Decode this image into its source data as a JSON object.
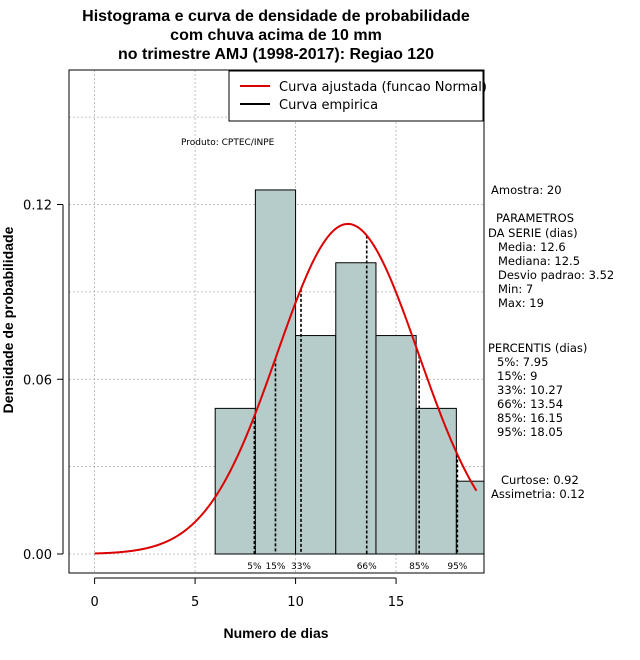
{
  "chart_data": {
    "type": "bar",
    "title": [
      "Histograma e curva de densidade de probabilidade",
      "com chuva acima de 10 mm",
      "no trimestre AMJ (1998-2017): Regiao 120"
    ],
    "xlabel": "Numero de dias",
    "ylabel": "Densidade de probabilidade",
    "xlim": [
      -1,
      19.5
    ],
    "ylim": [
      0,
      0.16
    ],
    "x_ticks": [
      0,
      5,
      10,
      15
    ],
    "y_ticks": [
      0.0,
      0.06,
      0.12
    ],
    "y_tick_labels": [
      "0.00",
      "0.06",
      "0.12"
    ],
    "grid": true,
    "bins": [
      {
        "x0": 6,
        "x1": 8,
        "value": 0.05
      },
      {
        "x0": 8,
        "x1": 10,
        "value": 0.125
      },
      {
        "x0": 10,
        "x1": 12,
        "value": 0.075
      },
      {
        "x0": 12,
        "x1": 14,
        "value": 0.1
      },
      {
        "x0": 14,
        "x1": 16,
        "value": 0.075
      },
      {
        "x0": 16,
        "x1": 18,
        "value": 0.05
      },
      {
        "x0": 18,
        "x1": 20,
        "value": 0.025
      }
    ],
    "normal_curve": {
      "mean": 12.6,
      "sd": 3.52,
      "x_from": 0,
      "x_to": 19
    },
    "percentile_lines": [
      {
        "label": "5%",
        "x": 7.95
      },
      {
        "label": "15%",
        "x": 9
      },
      {
        "label": "33%",
        "x": 10.27
      },
      {
        "label": "66%",
        "x": 13.54
      },
      {
        "label": "85%",
        "x": 16.15
      },
      {
        "label": "95%",
        "x": 18.05
      }
    ],
    "legend": {
      "placement": "top-right",
      "entries": [
        {
          "label": "Curva ajustada (funcao Normal)",
          "color": "#dd0000"
        },
        {
          "label": "Curva empirica",
          "color": "#000000"
        }
      ]
    },
    "annotation": "Produto: CPTEC/INPE"
  },
  "colors": {
    "bar_fill": "#b5cccb",
    "curve": "#dd0000",
    "grid": "#b0b0b0"
  },
  "side_panel": {
    "amostra": "Amostra: 20",
    "params_title": "PARAMETROS",
    "params_unit": "DA SERIE (dias)",
    "params": [
      "Media: 12.6",
      "Mediana: 12.5",
      "Desvio padrao: 3.52",
      "Min: 7",
      "Max: 19"
    ],
    "percentis_title": "PERCENTIS (dias)",
    "percentis": [
      "5%: 7.95",
      "15%: 9",
      "33%: 10.27",
      "66%: 13.54",
      "85%: 16.15",
      "95%: 18.05"
    ],
    "curtose": "Curtose: 0.92",
    "assimetria": "Assimetria: 0.12"
  }
}
